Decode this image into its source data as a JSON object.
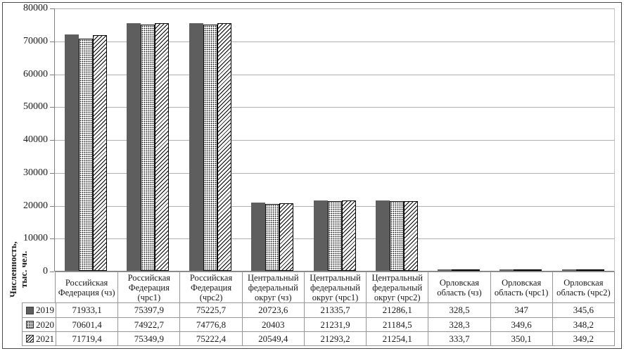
{
  "colors": {
    "bar_solid": "#5e5e5e",
    "gridline": "#b0b0b0",
    "axis": "#808080",
    "table_border": "#969696",
    "text": "#1a1a1a"
  },
  "y_axis": {
    "title": "Численность,\nтыс. чел.",
    "ticks": [
      0,
      10000,
      20000,
      30000,
      40000,
      50000,
      60000,
      70000,
      80000
    ],
    "max": 80000
  },
  "chart_data": {
    "type": "bar",
    "title": "",
    "xlabel": "",
    "ylabel": "Численность, тыс. чел.",
    "ylim": [
      0,
      80000
    ],
    "grid": true,
    "legend_position": "data-table-left",
    "categories": [
      "Российская Федерация (чз)",
      "Российская Федерация (чрс1)",
      "Российская Федерация (чрс2)",
      "Центральный федеральный округ (чз)",
      "Центральный федеральный округ (чрс1)",
      "Центральный федеральный округ (чрс2)",
      "Орловская область (чз)",
      "Орловская область (чрс1)",
      "Орловская область (чрс2)"
    ],
    "series": [
      {
        "name": "2019",
        "pattern": "solid",
        "values": [
          71933.1,
          75397.9,
          75225.7,
          20723.6,
          21335.7,
          21286.1,
          328.5,
          347,
          345.6
        ],
        "display": [
          "71933,1",
          "75397,9",
          "75225,7",
          "20723,6",
          "21335,7",
          "21286,1",
          "328,5",
          "347",
          "345,6"
        ]
      },
      {
        "name": "2020",
        "pattern": "dots",
        "values": [
          70601.4,
          74922.7,
          74776.8,
          20403,
          21231.9,
          21184.5,
          328.3,
          349.6,
          348.2
        ],
        "display": [
          "70601,4",
          "74922,7",
          "74776,8",
          "20403",
          "21231,9",
          "21184,5",
          "328,3",
          "349,6",
          "348,2"
        ]
      },
      {
        "name": "2021",
        "pattern": "hatch",
        "values": [
          71719.4,
          75349.9,
          75222.4,
          20549.4,
          21293.2,
          21254.1,
          333.7,
          350.1,
          349.2
        ],
        "display": [
          "71719,4",
          "75349,9",
          "75222,4",
          "20549,4",
          "21293,2",
          "21254,1",
          "333,7",
          "350,1",
          "349,2"
        ]
      }
    ]
  }
}
